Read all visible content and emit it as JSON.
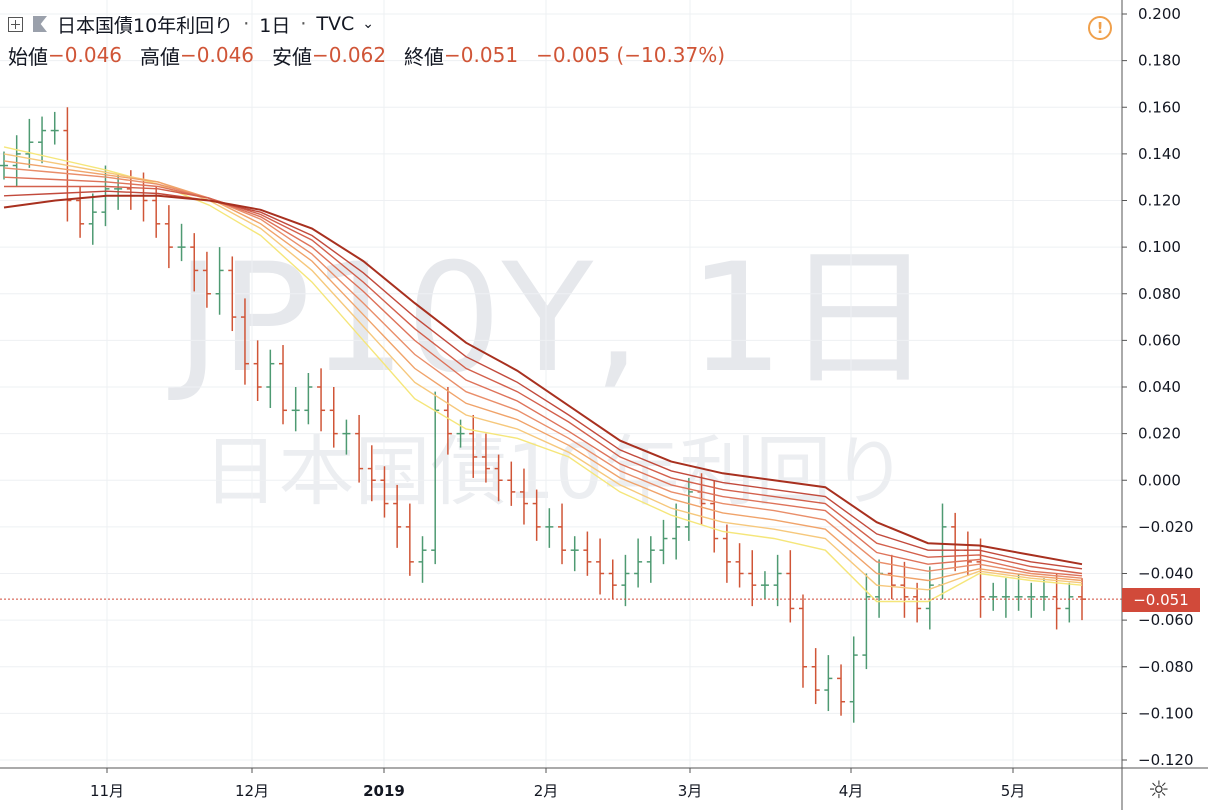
{
  "header": {
    "symbol_title": "日本国債10年利回り",
    "interval": "1日",
    "exchange": "TVC",
    "separator": "·",
    "ohlc": [
      {
        "label": "始値",
        "value": "−0.046"
      },
      {
        "label": "高値",
        "value": "−0.046"
      },
      {
        "label": "安値",
        "value": "−0.062"
      },
      {
        "label": "終値",
        "value": "−0.051"
      }
    ],
    "change": "−0.005 (−10.37%)"
  },
  "watermark": {
    "main": "JP10Y, 1日",
    "sub": "日本国債10年利回り"
  },
  "last_price_label": "−0.051",
  "colors": {
    "up": "#4e9a72",
    "down": "#d05537",
    "ribbon": [
      "#f5e67a",
      "#f6c87c",
      "#f0a36a",
      "#e98e6a",
      "#de735a",
      "#d3604c",
      "#c24a3c",
      "#a8301f"
    ],
    "grid": "#eef0f3",
    "text": "#131722"
  },
  "chart_data": {
    "type": "line",
    "title": "日本国債10年利回り · 1日 · TVC",
    "ylim": [
      -0.12,
      0.2
    ],
    "y_ticks": [
      "0.200",
      "0.180",
      "0.160",
      "0.140",
      "0.120",
      "0.100",
      "0.080",
      "0.060",
      "0.040",
      "0.020",
      "0.000",
      "−0.020",
      "−0.040",
      "−0.060",
      "−0.080",
      "−0.100",
      "−0.120"
    ],
    "x_ticks": [
      "11月",
      "12月",
      "2019",
      "2月",
      "3月",
      "4月",
      "5月"
    ],
    "last_value": -0.051,
    "price_bars_close": [
      0.135,
      0.14,
      0.145,
      0.15,
      0.15,
      0.12,
      0.11,
      0.115,
      0.125,
      0.125,
      0.122,
      0.12,
      0.11,
      0.1,
      0.1,
      0.09,
      0.08,
      0.09,
      0.07,
      0.05,
      0.04,
      0.05,
      0.03,
      0.03,
      0.04,
      0.03,
      0.02,
      0.02,
      0.005,
      0.0,
      -0.01,
      -0.02,
      -0.035,
      -0.03,
      0.03,
      0.02,
      0.02,
      0.01,
      0.005,
      0.0,
      -0.005,
      -0.01,
      -0.02,
      -0.02,
      -0.03,
      -0.03,
      -0.035,
      -0.04,
      -0.045,
      -0.04,
      -0.035,
      -0.03,
      -0.025,
      -0.02,
      -0.005,
      -0.01,
      -0.025,
      -0.035,
      -0.04,
      -0.045,
      -0.045,
      -0.04,
      -0.055,
      -0.08,
      -0.09,
      -0.085,
      -0.095,
      -0.075,
      -0.05,
      -0.04,
      -0.045,
      -0.05,
      -0.055,
      -0.045,
      -0.02,
      -0.03,
      -0.035,
      -0.05,
      -0.05,
      -0.05,
      -0.05,
      -0.05,
      -0.05,
      -0.055,
      -0.05,
      -0.051
    ],
    "series": [
      {
        "values": [
          0.143,
          0.138,
          0.133,
          0.127,
          0.118,
          0.105,
          0.085,
          0.06,
          0.035,
          0.022,
          0.018,
          0.01,
          -0.005,
          -0.015,
          -0.022,
          -0.025,
          -0.03,
          -0.052,
          -0.052,
          -0.04,
          -0.043,
          -0.045
        ]
      },
      {
        "values": [
          0.14,
          0.136,
          0.132,
          0.128,
          0.12,
          0.108,
          0.09,
          0.066,
          0.042,
          0.028,
          0.022,
          0.012,
          -0.002,
          -0.012,
          -0.018,
          -0.021,
          -0.025,
          -0.045,
          -0.047,
          -0.039,
          -0.042,
          -0.044
        ]
      },
      {
        "values": [
          0.137,
          0.134,
          0.131,
          0.128,
          0.121,
          0.11,
          0.094,
          0.071,
          0.048,
          0.033,
          0.026,
          0.015,
          0.001,
          -0.008,
          -0.014,
          -0.017,
          -0.021,
          -0.04,
          -0.043,
          -0.038,
          -0.041,
          -0.043
        ]
      },
      {
        "values": [
          0.134,
          0.132,
          0.13,
          0.127,
          0.121,
          0.112,
          0.097,
          0.076,
          0.054,
          0.038,
          0.03,
          0.018,
          0.004,
          -0.005,
          -0.01,
          -0.013,
          -0.017,
          -0.035,
          -0.039,
          -0.036,
          -0.04,
          -0.042
        ]
      },
      {
        "values": [
          0.13,
          0.129,
          0.128,
          0.126,
          0.121,
          0.113,
          0.1,
          0.081,
          0.06,
          0.043,
          0.034,
          0.021,
          0.007,
          -0.002,
          -0.007,
          -0.01,
          -0.013,
          -0.031,
          -0.036,
          -0.034,
          -0.039,
          -0.041
        ]
      },
      {
        "values": [
          0.126,
          0.126,
          0.126,
          0.125,
          0.121,
          0.114,
          0.103,
          0.085,
          0.065,
          0.048,
          0.038,
          0.025,
          0.01,
          0.001,
          -0.004,
          -0.007,
          -0.01,
          -0.027,
          -0.033,
          -0.032,
          -0.037,
          -0.04
        ]
      },
      {
        "values": [
          0.122,
          0.123,
          0.124,
          0.123,
          0.12,
          0.115,
          0.105,
          0.089,
          0.07,
          0.053,
          0.042,
          0.028,
          0.013,
          0.004,
          -0.001,
          -0.004,
          -0.007,
          -0.023,
          -0.03,
          -0.03,
          -0.035,
          -0.038
        ]
      },
      {
        "values": [
          0.117,
          0.12,
          0.122,
          0.122,
          0.12,
          0.116,
          0.108,
          0.094,
          0.076,
          0.059,
          0.047,
          0.032,
          0.017,
          0.008,
          0.003,
          0.0,
          -0.003,
          -0.018,
          -0.027,
          -0.028,
          -0.032,
          -0.036
        ]
      }
    ]
  }
}
